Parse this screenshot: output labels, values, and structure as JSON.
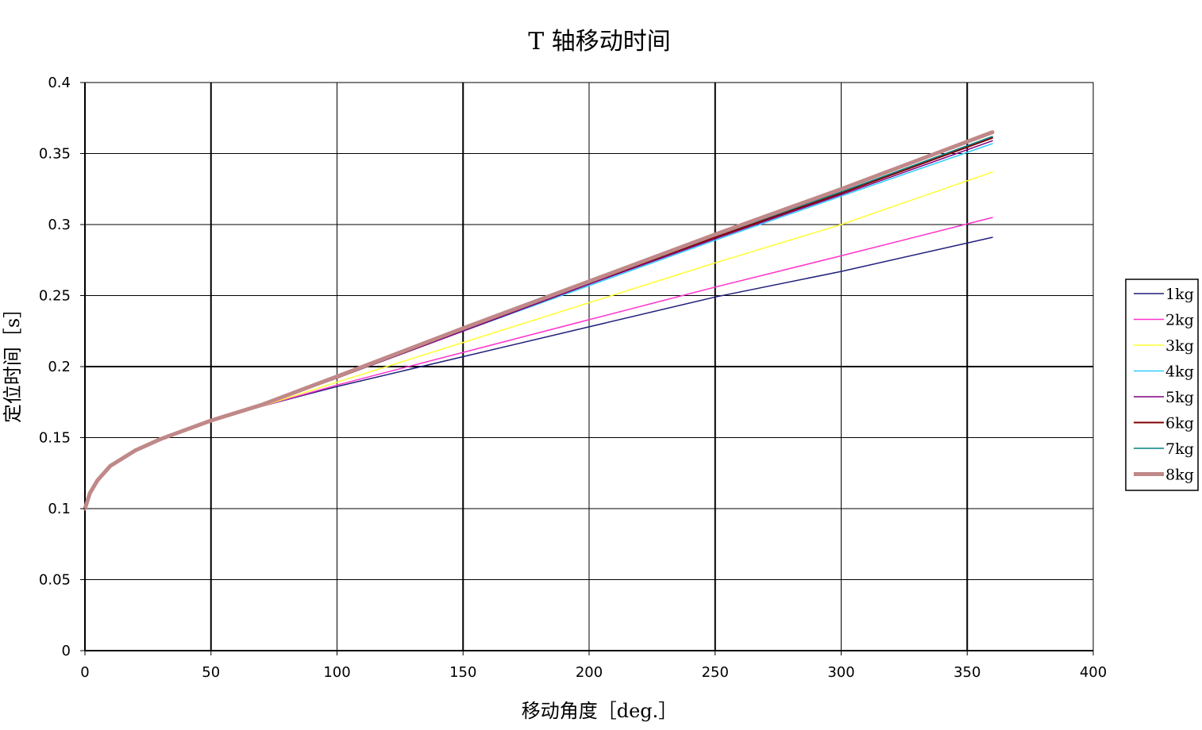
{
  "chart_data": {
    "type": "line",
    "title": "T 轴移动时间",
    "xlabel": "移动角度［deg.］",
    "ylabel": "定位时间［s］",
    "xlim": [
      0,
      400
    ],
    "ylim": [
      0,
      0.4
    ],
    "xticks": [
      0,
      50,
      100,
      150,
      200,
      250,
      300,
      350,
      400
    ],
    "yticks": [
      0,
      0.05,
      0.1,
      0.15,
      0.2,
      0.25,
      0.3,
      0.35,
      0.4
    ],
    "xtick_labels": [
      "0",
      "50",
      "100",
      "150",
      "200",
      "250",
      "300",
      "350",
      "400"
    ],
    "ytick_labels": [
      "0",
      "0.05",
      "0.1",
      "0.15",
      "0.2",
      "0.25",
      "0.3",
      "0.35",
      "0.4"
    ],
    "grid": true,
    "legend_position": "right",
    "series": [
      {
        "name": "1kg",
        "color": "#1f1f7a",
        "width": 1.5,
        "x": [
          0,
          2,
          5,
          10,
          20,
          30,
          50,
          70,
          100,
          150,
          200,
          250,
          300,
          360
        ],
        "y": [
          0.1,
          0.111,
          0.12,
          0.13,
          0.141,
          0.149,
          0.162,
          0.172,
          0.186,
          0.207,
          0.228,
          0.249,
          0.267,
          0.291
        ]
      },
      {
        "name": "2kg",
        "color": "#ff33cc",
        "width": 1.5,
        "x": [
          0,
          2,
          5,
          10,
          20,
          30,
          50,
          70,
          100,
          150,
          200,
          250,
          300,
          360
        ],
        "y": [
          0.1,
          0.111,
          0.12,
          0.13,
          0.141,
          0.149,
          0.162,
          0.172,
          0.187,
          0.21,
          0.233,
          0.256,
          0.278,
          0.305
        ]
      },
      {
        "name": "3kg",
        "color": "#ffff33",
        "width": 1.5,
        "x": [
          0,
          2,
          5,
          10,
          20,
          30,
          50,
          70,
          100,
          150,
          200,
          250,
          300,
          360
        ],
        "y": [
          0.1,
          0.111,
          0.12,
          0.13,
          0.141,
          0.149,
          0.162,
          0.172,
          0.189,
          0.217,
          0.245,
          0.273,
          0.3,
          0.337
        ]
      },
      {
        "name": "4kg",
        "color": "#33ccff",
        "width": 1.5,
        "x": [
          0,
          2,
          5,
          10,
          20,
          30,
          50,
          70,
          100,
          150,
          200,
          250,
          300,
          360
        ],
        "y": [
          0.1,
          0.111,
          0.12,
          0.13,
          0.141,
          0.149,
          0.162,
          0.173,
          0.192,
          0.225,
          0.257,
          0.289,
          0.32,
          0.357
        ]
      },
      {
        "name": "5kg",
        "color": "#800080",
        "width": 1.5,
        "x": [
          0,
          2,
          5,
          10,
          20,
          30,
          50,
          70,
          100,
          150,
          200,
          250,
          300,
          360
        ],
        "y": [
          0.1,
          0.111,
          0.12,
          0.13,
          0.141,
          0.149,
          0.162,
          0.173,
          0.192,
          0.225,
          0.258,
          0.29,
          0.321,
          0.359
        ]
      },
      {
        "name": "6kg",
        "color": "#800000",
        "width": 2,
        "x": [
          0,
          2,
          5,
          10,
          20,
          30,
          50,
          70,
          100,
          150,
          200,
          250,
          300,
          360
        ],
        "y": [
          0.1,
          0.111,
          0.12,
          0.13,
          0.141,
          0.149,
          0.162,
          0.173,
          0.192,
          0.226,
          0.259,
          0.291,
          0.322,
          0.361
        ]
      },
      {
        "name": "7kg",
        "color": "#008080",
        "width": 1.5,
        "x": [
          0,
          2,
          5,
          10,
          20,
          30,
          50,
          70,
          100,
          150,
          200,
          250,
          300,
          360
        ],
        "y": [
          0.1,
          0.111,
          0.12,
          0.13,
          0.141,
          0.149,
          0.162,
          0.173,
          0.193,
          0.226,
          0.259,
          0.292,
          0.323,
          0.362
        ]
      },
      {
        "name": "8kg",
        "color": "#c08888",
        "width": 5,
        "x": [
          0,
          2,
          5,
          10,
          20,
          30,
          50,
          70,
          100,
          150,
          200,
          250,
          300,
          360
        ],
        "y": [
          0.1,
          0.111,
          0.12,
          0.13,
          0.141,
          0.149,
          0.162,
          0.173,
          0.193,
          0.227,
          0.26,
          0.293,
          0.325,
          0.365
        ]
      }
    ]
  }
}
